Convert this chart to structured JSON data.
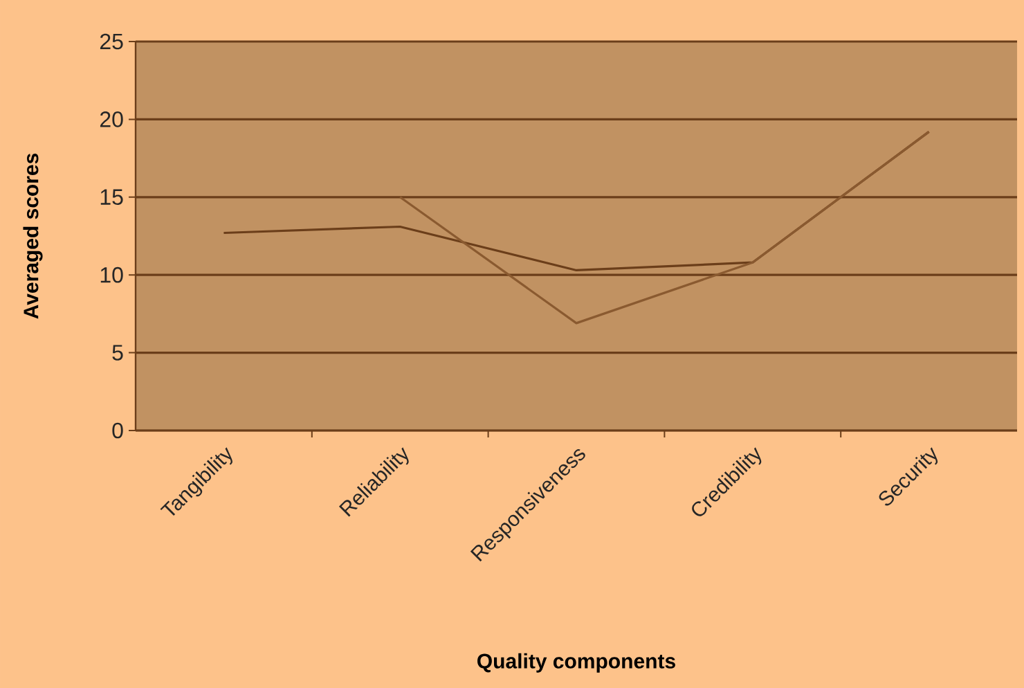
{
  "chart_data": {
    "type": "line",
    "xlabel": "Quality components",
    "ylabel": "Averaged scores",
    "categories": [
      "Tangibility",
      "Reliability",
      "Responsiveness",
      "Credibility",
      "Security"
    ],
    "series": [
      {
        "color": "#6b3e1a",
        "values": [
          12.7,
          13.1,
          10.3,
          10.8,
          19.2
        ]
      },
      {
        "color": "#8a5a30",
        "values": [
          null,
          15,
          6.9,
          10.8,
          19.2
        ]
      }
    ],
    "ylim": [
      0,
      25
    ],
    "yticks": [
      0,
      5,
      10,
      15,
      20,
      25
    ],
    "grid": "y",
    "line_style": "solid",
    "marker": "none"
  }
}
